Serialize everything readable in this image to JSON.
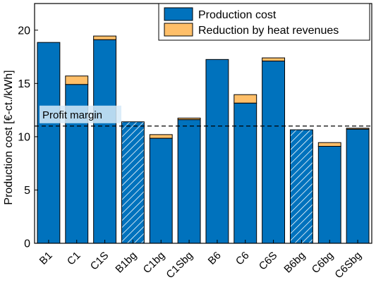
{
  "chart_data": {
    "type": "bar",
    "stacked": true,
    "categories": [
      "B1",
      "C1",
      "C1S",
      "B1bg",
      "C1bg",
      "C1Sbg",
      "B6",
      "C6",
      "C6S",
      "B6bg",
      "C6bg",
      "C6Sbg"
    ],
    "series": [
      {
        "name": "Production cost",
        "values": [
          18.85,
          14.9,
          19.1,
          11.4,
          9.85,
          11.6,
          17.25,
          13.15,
          17.1,
          10.65,
          9.1,
          10.7
        ],
        "color": "#0072bd",
        "hatched": [
          false,
          false,
          false,
          true,
          false,
          false,
          false,
          false,
          false,
          true,
          false,
          false
        ]
      },
      {
        "name": "Reduction by heat revenues",
        "values": [
          0,
          0.8,
          0.35,
          0,
          0.35,
          0.15,
          0,
          0.8,
          0.3,
          0,
          0.35,
          0.1
        ],
        "color": "#ffbf69"
      }
    ],
    "profit_margin": {
      "value": 11.0,
      "label": "Profit margin",
      "style": "dashed"
    },
    "xlabel": "",
    "ylabel": "Production cost [€-ct./kWh]",
    "ylim": [
      0,
      22.5
    ],
    "yticks": [
      0,
      5,
      10,
      15,
      20
    ],
    "grid": false,
    "legend": {
      "position": "top-right"
    }
  }
}
